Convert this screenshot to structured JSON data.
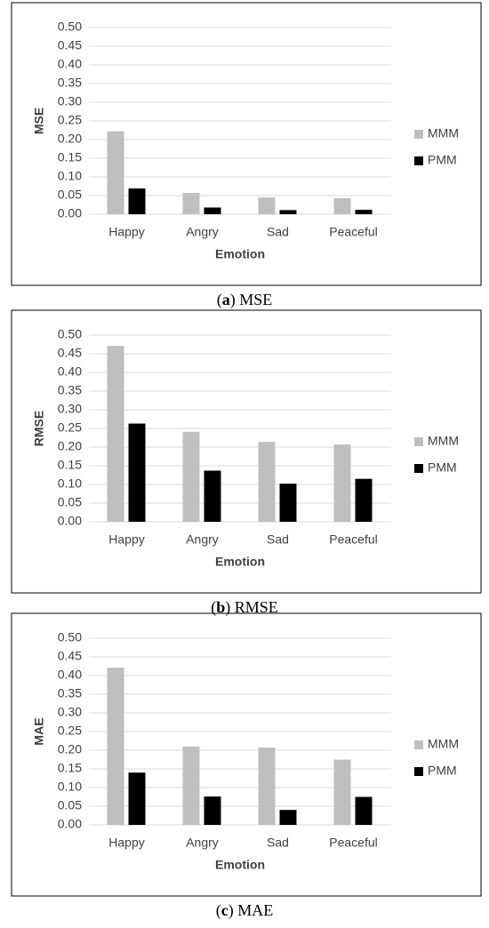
{
  "chart_data": [
    {
      "type": "bar",
      "caption": [
        "(",
        "a",
        ") MSE"
      ],
      "y_label": "MSE",
      "x_label": "Emotion",
      "categories": [
        "Happy",
        "Angry",
        "Sad",
        "Peaceful"
      ],
      "series": [
        {
          "name": "MMM",
          "color": "#bfbfbf",
          "values": [
            0.222,
            0.057,
            0.045,
            0.043
          ]
        },
        {
          "name": "PMM",
          "color": "#000000",
          "values": [
            0.069,
            0.018,
            0.011,
            0.012
          ]
        }
      ],
      "ylim": [
        0,
        0.5
      ],
      "yticks": [
        {
          "value": 0,
          "label": "0.00"
        },
        {
          "value": 0.05,
          "label": "0.05"
        },
        {
          "value": 0.1,
          "label": "0.10"
        },
        {
          "value": 0.15,
          "label": "0.15"
        },
        {
          "value": 0.2,
          "label": "0.20"
        },
        {
          "value": 0.25,
          "label": "0.25"
        },
        {
          "value": 0.3,
          "label": "0.30"
        },
        {
          "value": 0.35,
          "label": "0.35"
        },
        {
          "value": 0.4,
          "label": "0.40"
        },
        {
          "value": 0.45,
          "label": "0.45"
        },
        {
          "value": 0.5,
          "label": "0.50"
        }
      ],
      "grid": true,
      "legend": "right"
    },
    {
      "type": "bar",
      "caption": [
        "(",
        "b",
        ") RMSE"
      ],
      "y_label": "RMSE",
      "x_label": "Emotion",
      "categories": [
        "Happy",
        "Angry",
        "Sad",
        "Peaceful"
      ],
      "series": [
        {
          "name": "MMM",
          "color": "#bfbfbf",
          "values": [
            0.471,
            0.241,
            0.214,
            0.207
          ]
        },
        {
          "name": "PMM",
          "color": "#000000",
          "values": [
            0.263,
            0.137,
            0.102,
            0.115
          ]
        }
      ],
      "ylim": [
        0,
        0.5
      ],
      "yticks": [
        {
          "value": 0,
          "label": "0.00"
        },
        {
          "value": 0.05,
          "label": "0.05"
        },
        {
          "value": 0.1,
          "label": "0.10"
        },
        {
          "value": 0.15,
          "label": "0.15"
        },
        {
          "value": 0.2,
          "label": "0.20"
        },
        {
          "value": 0.25,
          "label": "0.25"
        },
        {
          "value": 0.3,
          "label": "0.30"
        },
        {
          "value": 0.35,
          "label": "0.35"
        },
        {
          "value": 0.4,
          "label": "0.40"
        },
        {
          "value": 0.45,
          "label": "0.45"
        },
        {
          "value": 0.5,
          "label": "0.50"
        }
      ],
      "grid": true,
      "legend": "right"
    },
    {
      "type": "bar",
      "caption": [
        "(",
        "c",
        ") MAE"
      ],
      "y_label": "MAE",
      "x_label": "Emotion",
      "categories": [
        "Happy",
        "Angry",
        "Sad",
        "Peaceful"
      ],
      "series": [
        {
          "name": "MMM",
          "color": "#bfbfbf",
          "values": [
            0.421,
            0.21,
            0.207,
            0.175
          ]
        },
        {
          "name": "PMM",
          "color": "#000000",
          "values": [
            0.14,
            0.076,
            0.04,
            0.075
          ]
        }
      ],
      "ylim": [
        0,
        0.5
      ],
      "yticks": [
        {
          "value": 0,
          "label": "0.00"
        },
        {
          "value": 0.05,
          "label": "0.05"
        },
        {
          "value": 0.1,
          "label": "0.10"
        },
        {
          "value": 0.15,
          "label": "0.15"
        },
        {
          "value": 0.2,
          "label": "0.20"
        },
        {
          "value": 0.25,
          "label": "0.25"
        },
        {
          "value": 0.3,
          "label": "0.30"
        },
        {
          "value": 0.35,
          "label": "0.35"
        },
        {
          "value": 0.4,
          "label": "0.40"
        },
        {
          "value": 0.45,
          "label": "0.45"
        },
        {
          "value": 0.5,
          "label": "0.50"
        }
      ],
      "grid": true,
      "legend": "right"
    }
  ]
}
